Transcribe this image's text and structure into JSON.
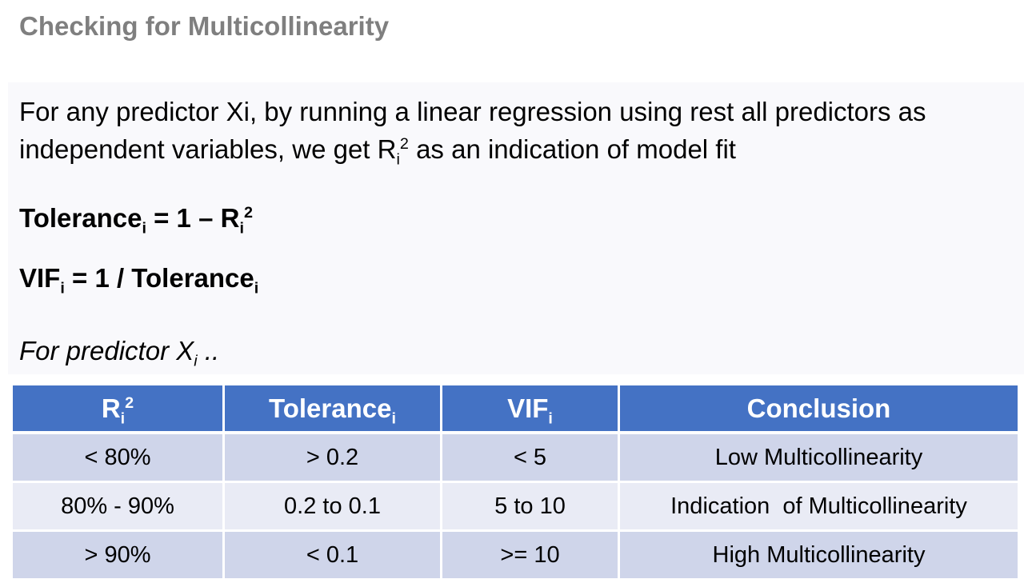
{
  "title": "Checking for Multicollinearity",
  "intro": {
    "part1": "For any predictor Xi, by running a linear regression using rest all predictors as independent variables, we get R",
    "sub_i": "i",
    "sup_2": "2",
    "part2": " as an indication of model fit"
  },
  "formulas": {
    "tolerance": {
      "lhs": "Tolerance",
      "lhs_sub": "i",
      "eq": " = 1 – R",
      "r_sub": "i",
      "r_sup": "2"
    },
    "vif": {
      "lhs": "VIF",
      "lhs_sub": "i",
      "eq": " = 1 / Tolerance",
      "rhs_sub": "i"
    }
  },
  "note": {
    "text": "For predictor X",
    "sub": "i",
    "suffix": " .."
  },
  "table": {
    "headers": {
      "r2": "R",
      "r2_sub": "i",
      "r2_sup": "2",
      "tolerance": "Tolerance",
      "tolerance_sub": "i",
      "vif": "VIF",
      "vif_sub": "i",
      "conclusion": "Conclusion"
    },
    "rows": [
      [
        "< 80%",
        "> 0.2",
        "< 5",
        "Low Multicollinearity"
      ],
      [
        "80% - 90%",
        "0.2 to 0.1",
        "5 to 10",
        "Indication  of Multicollinearity"
      ],
      [
        "> 90%",
        "< 0.1",
        ">= 10",
        "High Multicollinearity"
      ]
    ]
  },
  "colors": {
    "title": "#7f7f7f",
    "header_bg": "#4472c4",
    "row_dark": "#cfd5ea",
    "row_light": "#e9ebf5"
  }
}
